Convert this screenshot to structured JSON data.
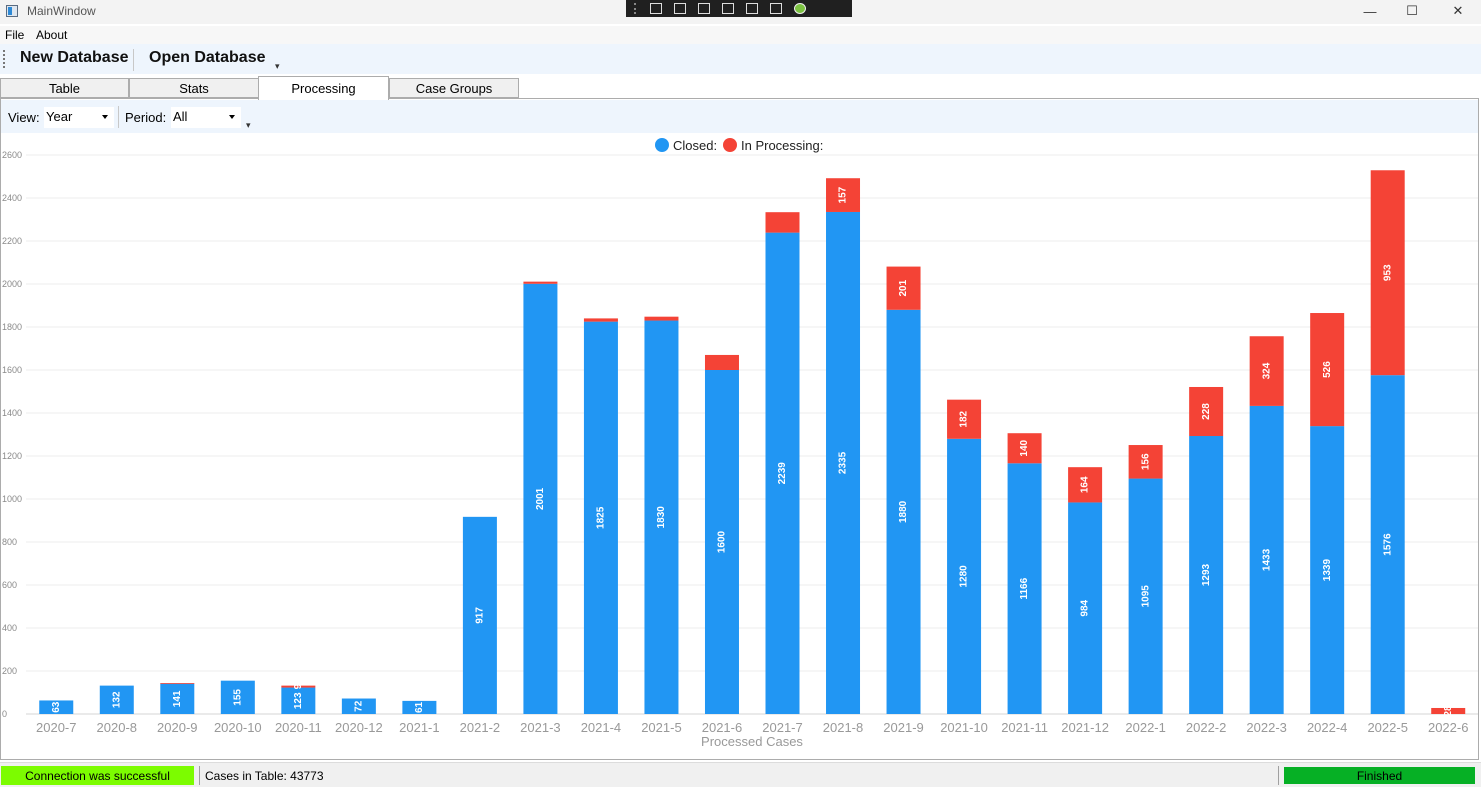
{
  "window": {
    "title": "MainWindow",
    "minimize_glyph": "—",
    "maximize_glyph": "☐",
    "close_glyph": "✕"
  },
  "menu": {
    "items": [
      "File",
      "About"
    ]
  },
  "toolbar": {
    "new_db": "New Database",
    "open_db": "Open Database",
    "overflow_glyph": "▾"
  },
  "tabs": [
    "Table",
    "Stats",
    "Processing",
    "Case Groups"
  ],
  "active_tab": "Processing",
  "viewbar": {
    "view_label": "View:",
    "view_value": "Year",
    "period_label": "Period:",
    "period_value": "All",
    "overflow_glyph": "▾"
  },
  "legend": [
    {
      "label": "Closed:",
      "color": "#2196f3"
    },
    {
      "label": "In Processing:",
      "color": "#f44336"
    }
  ],
  "chart_data": {
    "type": "bar",
    "stacked": true,
    "orientation": "vertical",
    "xlabel": "Processed Cases",
    "ylabel": "",
    "ylim": [
      0,
      2600
    ],
    "yticks": [
      0,
      200,
      400,
      600,
      800,
      1000,
      1200,
      1400,
      1600,
      1800,
      2000,
      2200,
      2400,
      2600
    ],
    "grid": true,
    "legend_position": "top-center",
    "categories": [
      "2020-7",
      "2020-8",
      "2020-9",
      "2020-10",
      "2020-11",
      "2020-12",
      "2021-1",
      "2021-2",
      "2021-3",
      "2021-4",
      "2021-5",
      "2021-6",
      "2021-7",
      "2021-8",
      "2021-9",
      "2021-10",
      "2021-11",
      "2021-12",
      "2022-1",
      "2022-2",
      "2022-3",
      "2022-4",
      "2022-5",
      "2022-6"
    ],
    "series": [
      {
        "name": "Closed:",
        "color": "#2196f3",
        "values": [
          63,
          132,
          141,
          155,
          123,
          72,
          61,
          917,
          2001,
          1825,
          1830,
          1600,
          2239,
          2335,
          1880,
          1280,
          1166,
          984,
          1095,
          1293,
          1433,
          1339,
          1576,
          0
        ]
      },
      {
        "name": "In Processing:",
        "color": "#f44336",
        "values": [
          0,
          0,
          3,
          0,
          9,
          0,
          0,
          0,
          10,
          15,
          18,
          70,
          95,
          157,
          201,
          182,
          140,
          164,
          156,
          228,
          324,
          526,
          953,
          28
        ]
      }
    ],
    "data_labels": [
      [
        "63",
        "132",
        "141",
        "155",
        "123",
        "72",
        "61",
        "917",
        "2001",
        "1825",
        "1830",
        "1600",
        "2239",
        "2335",
        "1880",
        "1280",
        "1166",
        "984",
        "1095",
        "1293",
        "1433",
        "1339",
        "1576",
        ""
      ],
      [
        "",
        "",
        "",
        "",
        "9",
        "",
        "",
        "",
        "",
        "",
        "",
        "",
        "",
        "157",
        "201",
        "182",
        "140",
        "164",
        "156",
        "228",
        "324",
        "526",
        "953",
        "28"
      ]
    ]
  },
  "status": {
    "connection": "Connection was successful",
    "cases": "Cases in Table: 43773",
    "progress": "Finished",
    "progress_value": 1.0
  }
}
